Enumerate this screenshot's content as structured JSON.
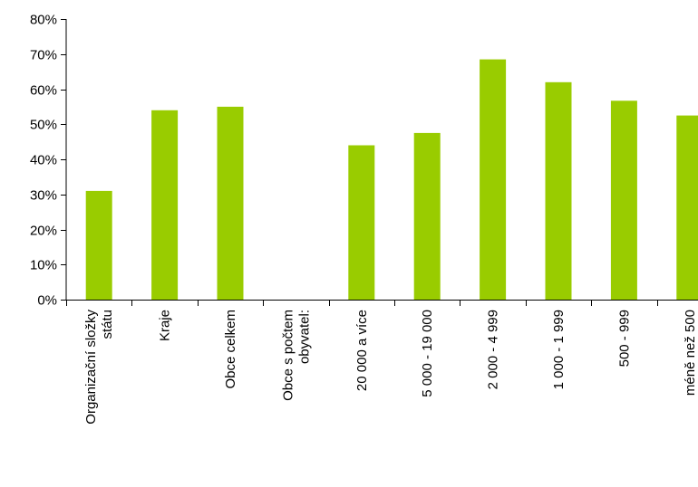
{
  "chart_data": {
    "type": "bar",
    "title": "",
    "xlabel": "",
    "ylabel": "",
    "ylim": [
      0,
      0.8
    ],
    "y_ticks": [
      0,
      0.1,
      0.2,
      0.3,
      0.4,
      0.5,
      0.6,
      0.7,
      0.8
    ],
    "y_tick_labels": [
      "0%",
      "10%",
      "20%",
      "30%",
      "40%",
      "50%",
      "60%",
      "70%",
      "80%"
    ],
    "grid": false,
    "legend": "none",
    "bar_color": "#99cc00",
    "categories": [
      [
        "Organizační složky",
        "státu"
      ],
      [
        "Kraje"
      ],
      [
        "Obce celkem"
      ],
      [
        "Obce s počtem",
        "obyvatel:"
      ],
      [
        "20 000 a více"
      ],
      [
        "5 000 - 19 000"
      ],
      [
        "2 000 - 4 999"
      ],
      [
        "1 000 - 1 999"
      ],
      [
        "500 - 999"
      ],
      [
        "méně než 500"
      ]
    ],
    "values": [
      0.31,
      0.54,
      0.55,
      null,
      0.44,
      0.475,
      0.685,
      0.62,
      0.567,
      0.525
    ]
  }
}
